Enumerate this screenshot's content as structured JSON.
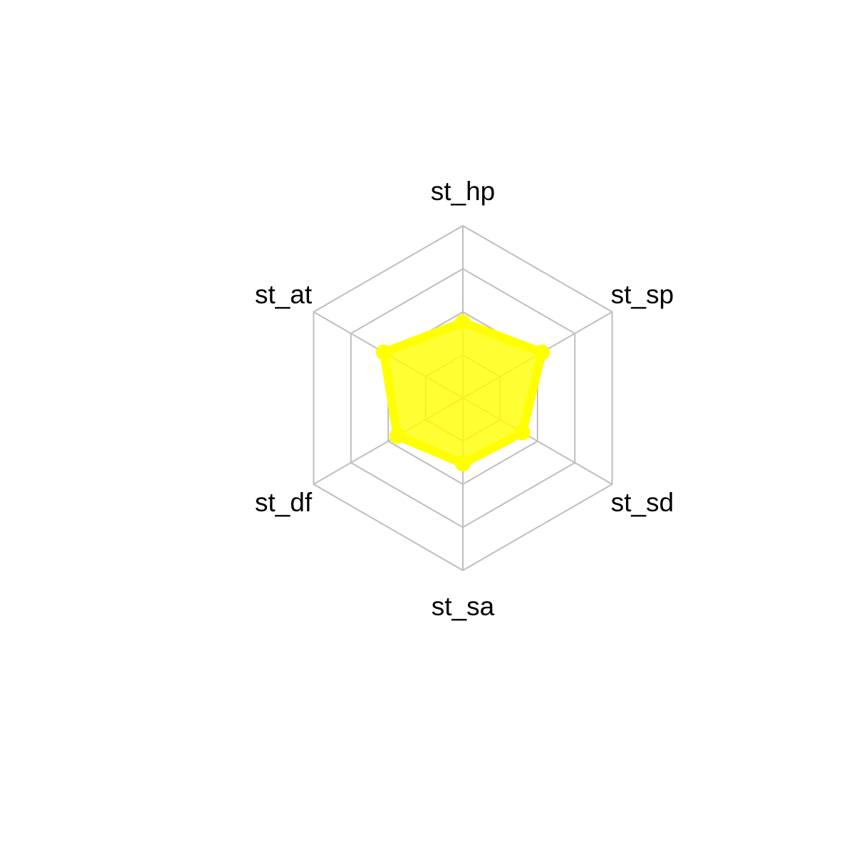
{
  "chart_data": {
    "type": "radar",
    "title": "",
    "axes": [
      "st_hp",
      "st_sp",
      "st_sd",
      "st_sa",
      "st_df",
      "st_at"
    ],
    "range": [
      0,
      1
    ],
    "grid_levels": 4,
    "series": [
      {
        "values": [
          0.44,
          0.53,
          0.4,
          0.38,
          0.44,
          0.53
        ]
      }
    ],
    "colors": {
      "fill": "#ffff00",
      "line": "#ffff00",
      "grid": "#bebebe"
    }
  }
}
